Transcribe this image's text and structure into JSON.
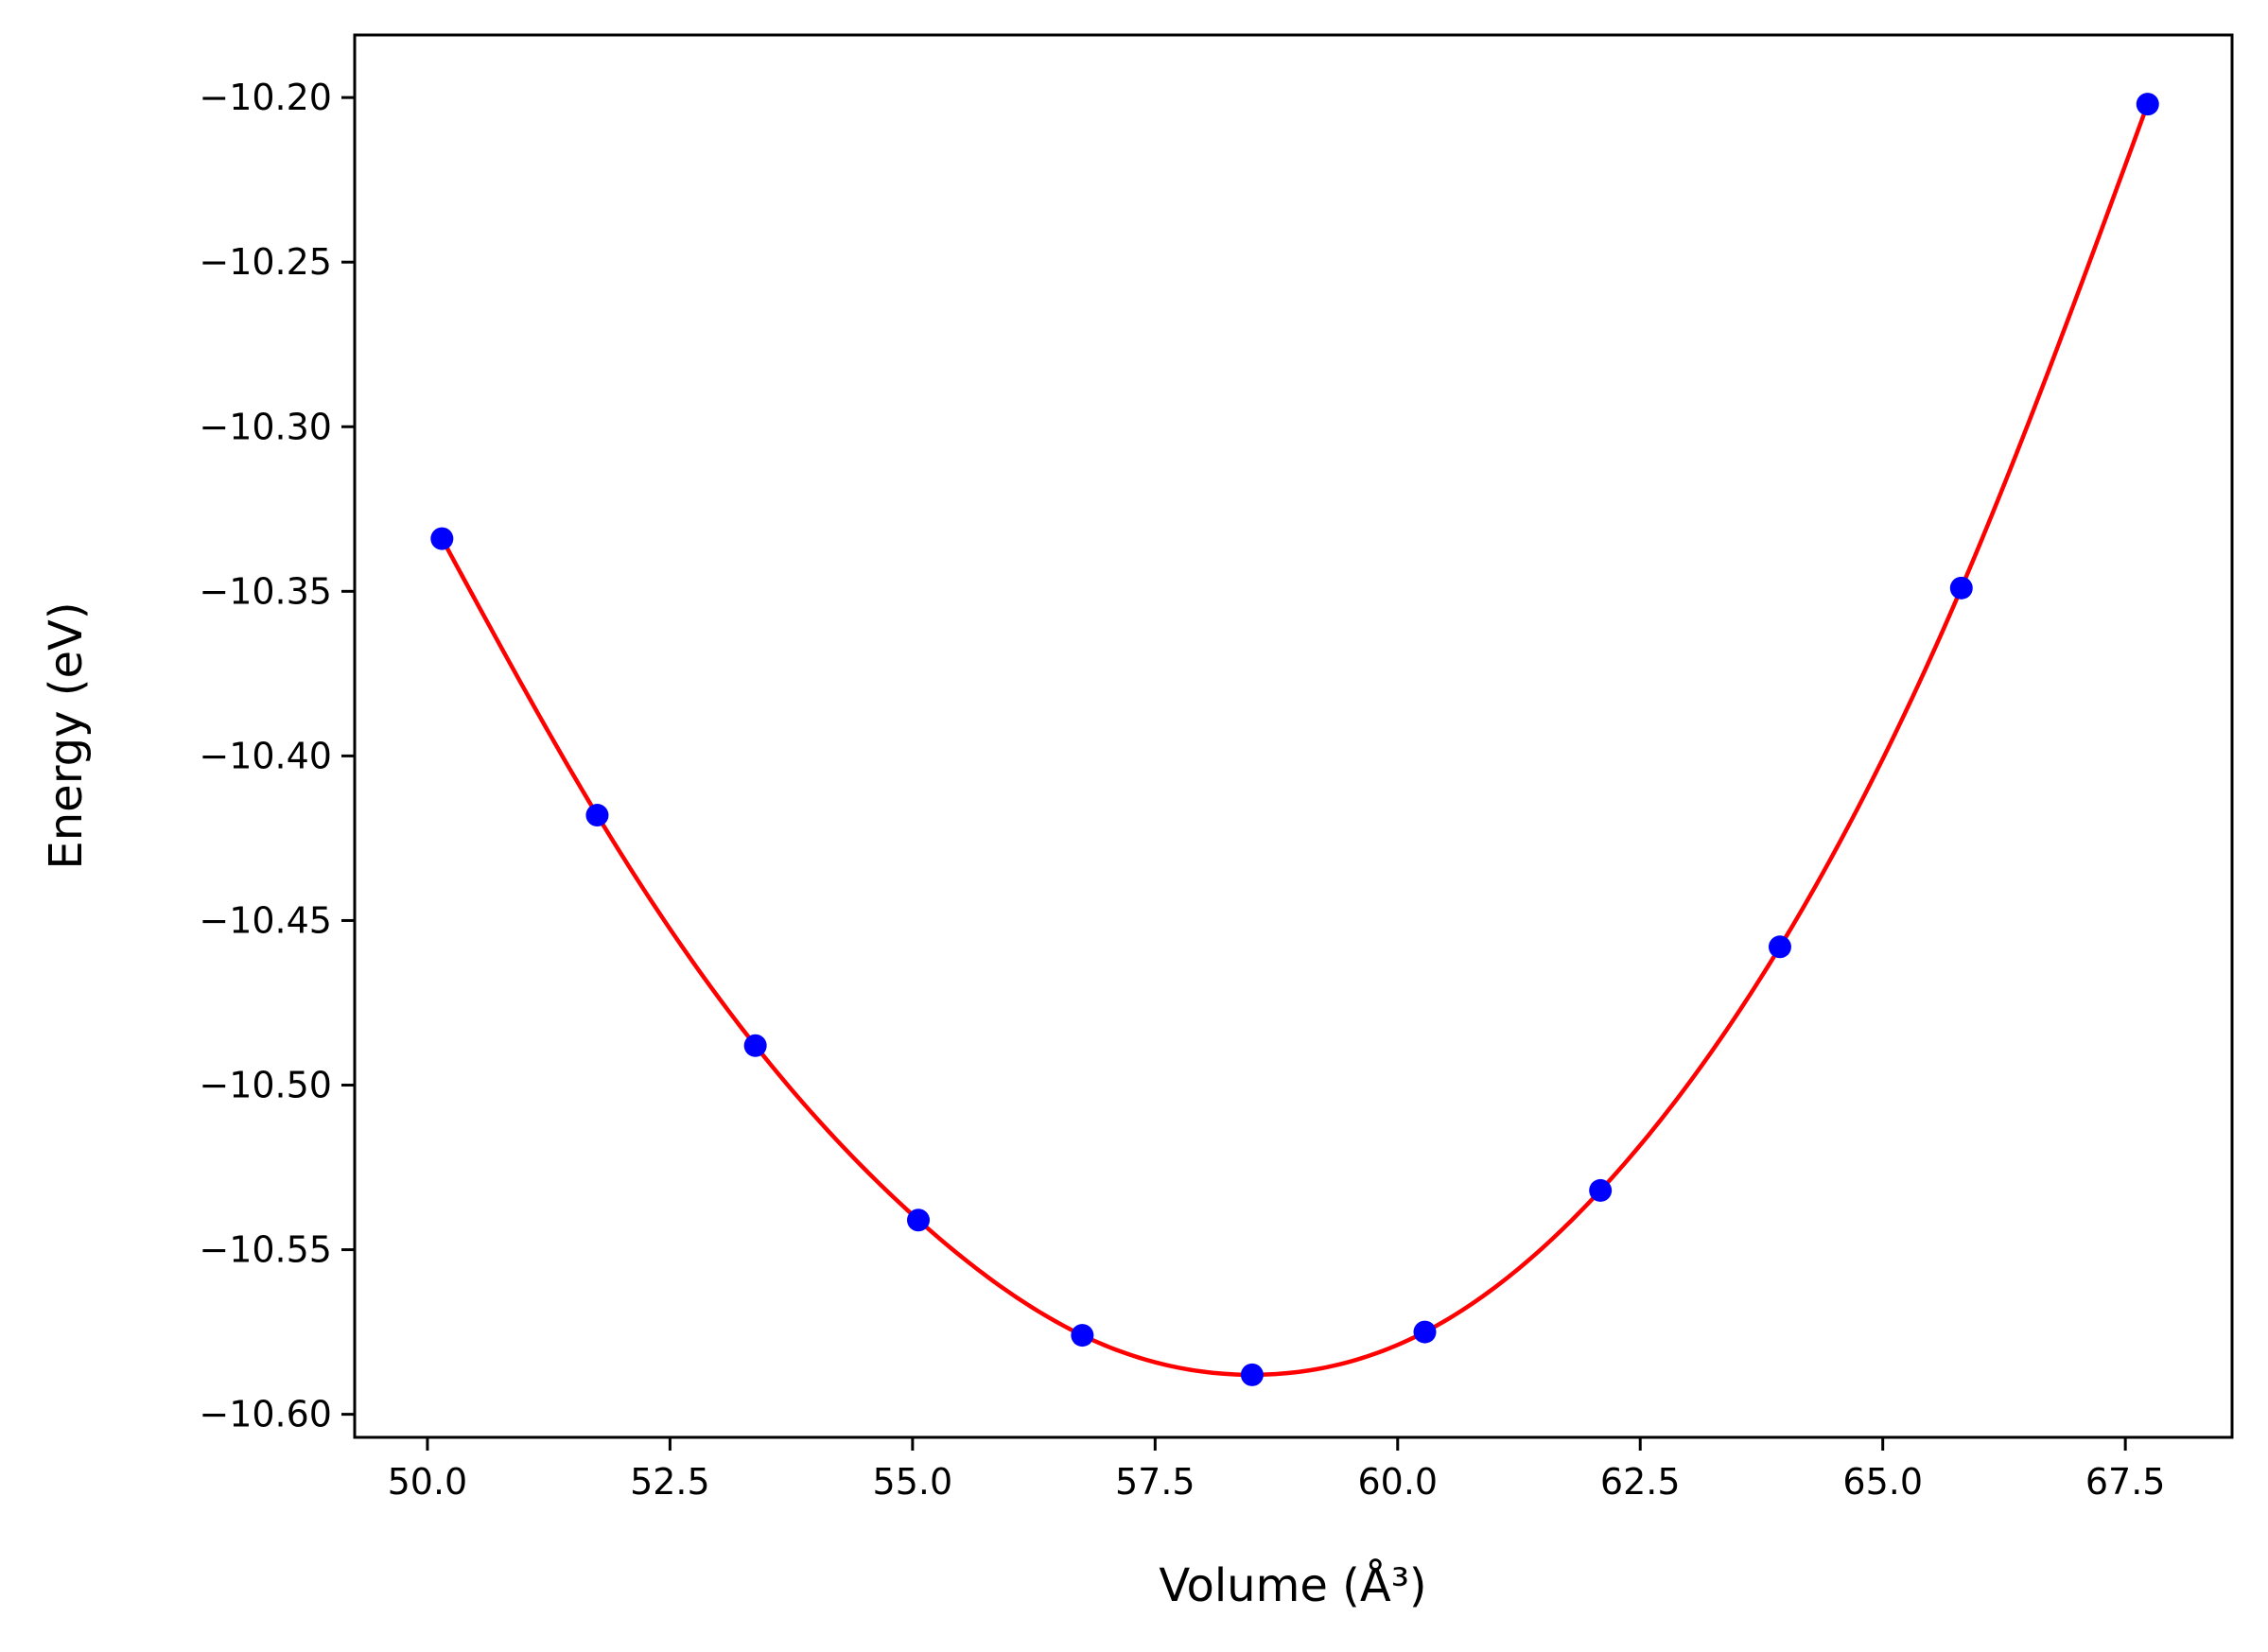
{
  "chart_data": {
    "type": "scatter",
    "title": "",
    "xlabel": "Volume (Å³)",
    "ylabel": "Energy (eV)",
    "xlim": [
      49.25,
      68.6
    ],
    "ylim": [
      -10.607,
      -10.181
    ],
    "xticks": [
      50.0,
      52.5,
      55.0,
      57.5,
      60.0,
      62.5,
      65.0,
      67.5
    ],
    "xtick_labels": [
      "50.0",
      "52.5",
      "55.0",
      "57.5",
      "60.0",
      "62.5",
      "65.0",
      "67.5"
    ],
    "yticks": [
      -10.2,
      -10.25,
      -10.3,
      -10.35,
      -10.4,
      -10.45,
      -10.5,
      -10.55,
      -10.6
    ],
    "ytick_labels": [
      "−10.20",
      "−10.25",
      "−10.30",
      "−10.35",
      "−10.40",
      "−10.45",
      "−10.50",
      "−10.55",
      "−10.60"
    ],
    "grid": false,
    "series": [
      {
        "kind": "points",
        "color": "#0000ff",
        "x": [
          50.15,
          51.75,
          53.38,
          55.06,
          56.75,
          58.5,
          60.28,
          62.09,
          63.94,
          65.81,
          67.73
        ],
        "y": [
          -10.334,
          -10.418,
          -10.488,
          -10.541,
          -10.576,
          -10.588,
          -10.575,
          -10.532,
          -10.458,
          -10.349,
          -10.202
        ]
      },
      {
        "kind": "fit-curve",
        "color": "#ff0000",
        "x": [
          50.15,
          51.75,
          53.38,
          55.06,
          56.75,
          58.5,
          60.28,
          62.09,
          63.94,
          65.81,
          67.73
        ],
        "y": [
          -10.334,
          -10.418,
          -10.488,
          -10.541,
          -10.576,
          -10.588,
          -10.575,
          -10.532,
          -10.458,
          -10.349,
          -10.202
        ]
      }
    ]
  }
}
